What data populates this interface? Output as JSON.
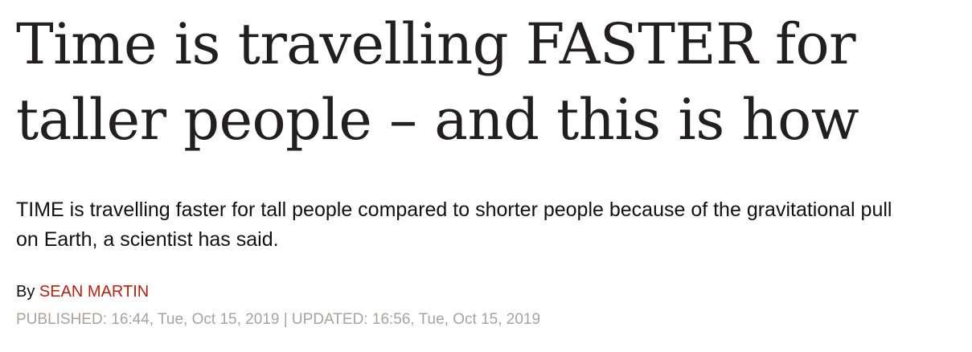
{
  "article": {
    "headline": "Time is travelling FASTER for taller people – and this is how",
    "standfirst": "TIME is travelling faster for tall people compared to shorter people because of the gravitational pull on Earth, a scientist has said.",
    "byline": {
      "prefix": "By",
      "author": "SEAN MARTIN"
    },
    "dates": {
      "published_label": "PUBLISHED:",
      "published": "16:44, Tue, Oct 15, 2019",
      "separator": "|",
      "updated_label": "UPDATED:",
      "updated": "16:56, Tue, Oct 15, 2019"
    }
  },
  "colors": {
    "headline": "#231f20",
    "author_link": "#b5220e",
    "dateline": "#a9a29d"
  }
}
